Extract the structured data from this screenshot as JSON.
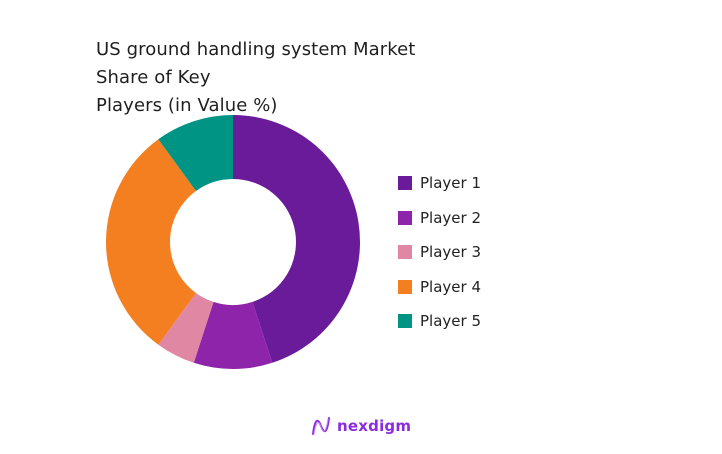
{
  "chart_data": {
    "type": "pie",
    "variant": "donut",
    "title": "US ground handling system Market Share of Key Players (in Value %)",
    "categories": [
      "Player 1",
      "Player 2",
      "Player 3",
      "Player 4",
      "Player 5"
    ],
    "values": [
      45,
      10,
      5,
      30,
      10
    ],
    "colors": [
      "#6a1b9a",
      "#8e24aa",
      "#e088a3",
      "#f47f20",
      "#009485"
    ],
    "unit": "%",
    "legend_position": "right",
    "start_angle_deg": 0,
    "direction": "clockwise"
  },
  "title": {
    "line1": "US ground handling system Market Share of Key",
    "line2": "Players (in Value %)"
  },
  "legend": {
    "items": [
      {
        "label": "Player 1",
        "color": "#6a1b9a"
      },
      {
        "label": "Player 2",
        "color": "#8e24aa"
      },
      {
        "label": "Player 3",
        "color": "#e088a3"
      },
      {
        "label": "Player 4",
        "color": "#f47f20"
      },
      {
        "label": "Player 5",
        "color": "#009485"
      }
    ]
  },
  "brand": {
    "name": "nexdigm",
    "icon": "nexdigm-wave-logo-icon"
  }
}
